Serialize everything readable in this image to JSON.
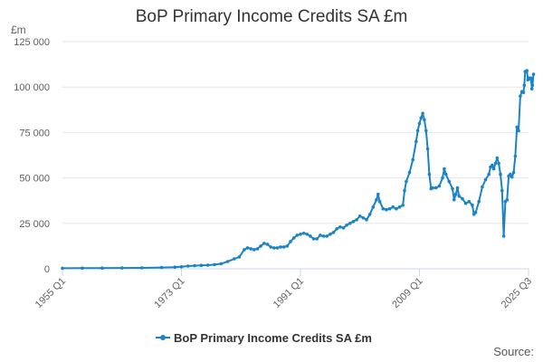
{
  "chart_data": {
    "type": "line",
    "title": "BoP Primary Income Credits SA £m",
    "y_unit_label": "£m",
    "ylim": [
      0,
      125000
    ],
    "y_ticks": [
      0,
      25000,
      50000,
      75000,
      100000,
      125000
    ],
    "y_tick_labels": [
      "0",
      "25 000",
      "50 000",
      "75 000",
      "100 000",
      "125 000"
    ],
    "x_tick_labels": [
      {
        "label": "1955 Q1",
        "t": 1955.0
      },
      {
        "label": "1973 Q1",
        "t": 1973.0
      },
      {
        "label": "1991 Q1",
        "t": 1991.0
      },
      {
        "label": "2009 Q1",
        "t": 2009.0
      },
      {
        "label": "2025 Q3",
        "t": 2025.5
      }
    ],
    "x_range": [
      1955.0,
      2025.5
    ],
    "grid": true,
    "legend_position": "bottom-center",
    "source_text": "Source:",
    "colors": {
      "series": "#1a84c6",
      "grid": "#e6e6e6",
      "axis": "#ccd6eb"
    },
    "series": [
      {
        "name": "BoP Primary Income Credits SA £m",
        "points": [
          [
            1955.0,
            300
          ],
          [
            1958.0,
            350
          ],
          [
            1961.0,
            400
          ],
          [
            1964.0,
            450
          ],
          [
            1967.0,
            500
          ],
          [
            1970.0,
            700
          ],
          [
            1972.0,
            900
          ],
          [
            1973.0,
            1100
          ],
          [
            1974.0,
            1500
          ],
          [
            1975.0,
            1700
          ],
          [
            1976.0,
            1900
          ],
          [
            1977.0,
            2000
          ],
          [
            1978.0,
            2300
          ],
          [
            1979.0,
            2800
          ],
          [
            1980.0,
            4000
          ],
          [
            1981.0,
            5500
          ],
          [
            1981.75,
            6500
          ],
          [
            1982.5,
            10500
          ],
          [
            1983.0,
            11500
          ],
          [
            1983.5,
            11000
          ],
          [
            1984.0,
            10500
          ],
          [
            1984.5,
            11000
          ],
          [
            1985.0,
            12500
          ],
          [
            1985.5,
            14000
          ],
          [
            1986.0,
            13500
          ],
          [
            1986.5,
            12000
          ],
          [
            1987.0,
            11500
          ],
          [
            1987.5,
            11500
          ],
          [
            1988.0,
            12000
          ],
          [
            1988.5,
            12000
          ],
          [
            1989.0,
            12500
          ],
          [
            1989.5,
            15000
          ],
          [
            1990.0,
            17000
          ],
          [
            1990.5,
            18500
          ],
          [
            1991.0,
            19000
          ],
          [
            1991.5,
            19500
          ],
          [
            1992.0,
            19000
          ],
          [
            1992.5,
            18000
          ],
          [
            1993.0,
            16500
          ],
          [
            1993.5,
            16500
          ],
          [
            1994.0,
            18500
          ],
          [
            1994.5,
            18000
          ],
          [
            1995.0,
            18000
          ],
          [
            1995.5,
            19000
          ],
          [
            1996.0,
            20000
          ],
          [
            1996.5,
            22000
          ],
          [
            1997.0,
            23000
          ],
          [
            1997.5,
            22500
          ],
          [
            1998.0,
            24000
          ],
          [
            1998.5,
            25000
          ],
          [
            1999.0,
            26000
          ],
          [
            1999.5,
            27000
          ],
          [
            2000.0,
            29000
          ],
          [
            2000.5,
            28000
          ],
          [
            2001.0,
            27000
          ],
          [
            2001.5,
            30000
          ],
          [
            2002.0,
            34000
          ],
          [
            2002.5,
            38000
          ],
          [
            2002.75,
            41000
          ],
          [
            2003.0,
            37000
          ],
          [
            2003.5,
            33000
          ],
          [
            2004.0,
            32500
          ],
          [
            2004.5,
            33000
          ],
          [
            2005.0,
            34000
          ],
          [
            2005.5,
            33000
          ],
          [
            2006.0,
            34000
          ],
          [
            2006.5,
            35000
          ],
          [
            2006.75,
            43000
          ],
          [
            2007.0,
            48000
          ],
          [
            2007.5,
            53000
          ],
          [
            2008.0,
            60000
          ],
          [
            2008.5,
            70000
          ],
          [
            2008.75,
            76000
          ],
          [
            2009.0,
            80000
          ],
          [
            2009.25,
            83000
          ],
          [
            2009.5,
            85500
          ],
          [
            2009.75,
            82000
          ],
          [
            2010.0,
            76000
          ],
          [
            2010.25,
            66000
          ],
          [
            2010.5,
            52000
          ],
          [
            2010.75,
            44000
          ],
          [
            2011.0,
            44500
          ],
          [
            2011.5,
            44500
          ],
          [
            2012.0,
            45500
          ],
          [
            2012.5,
            50000
          ],
          [
            2012.75,
            55000
          ],
          [
            2013.0,
            52000
          ],
          [
            2013.5,
            48000
          ],
          [
            2014.0,
            44000
          ],
          [
            2014.25,
            38000
          ],
          [
            2014.5,
            41000
          ],
          [
            2014.75,
            44500
          ],
          [
            2015.0,
            40000
          ],
          [
            2015.5,
            38500
          ],
          [
            2016.0,
            36000
          ],
          [
            2016.5,
            37000
          ],
          [
            2017.0,
            35000
          ],
          [
            2017.25,
            30000
          ],
          [
            2017.5,
            31000
          ],
          [
            2018.0,
            37000
          ],
          [
            2018.5,
            45000
          ],
          [
            2019.0,
            49000
          ],
          [
            2019.5,
            52000
          ],
          [
            2019.75,
            56000
          ],
          [
            2020.0,
            57000
          ],
          [
            2020.25,
            55000
          ],
          [
            2020.5,
            58000
          ],
          [
            2020.75,
            61000
          ],
          [
            2021.0,
            58000
          ],
          [
            2021.25,
            52000
          ],
          [
            2021.5,
            43000
          ],
          [
            2021.75,
            18000
          ],
          [
            2022.0,
            37000
          ],
          [
            2022.25,
            38000
          ],
          [
            2022.5,
            51000
          ],
          [
            2022.75,
            52000
          ],
          [
            2023.0,
            50500
          ],
          [
            2023.25,
            53000
          ],
          [
            2023.5,
            62000
          ],
          [
            2023.75,
            78000
          ],
          [
            2024.0,
            76000
          ],
          [
            2024.25,
            95000
          ],
          [
            2024.5,
            97500
          ],
          [
            2024.75,
            97000
          ],
          [
            2024.85,
            101000
          ],
          [
            2025.0,
            108500
          ],
          [
            2025.25,
            109000
          ],
          [
            2025.4,
            104000
          ],
          [
            2025.5,
            105000
          ],
          [
            2025.6,
            104500
          ],
          [
            2025.75,
            104500
          ],
          [
            2025.85,
            105000
          ],
          [
            2026.0,
            99000
          ],
          [
            2026.1,
            101000
          ],
          [
            2026.25,
            107000
          ]
        ]
      }
    ]
  }
}
